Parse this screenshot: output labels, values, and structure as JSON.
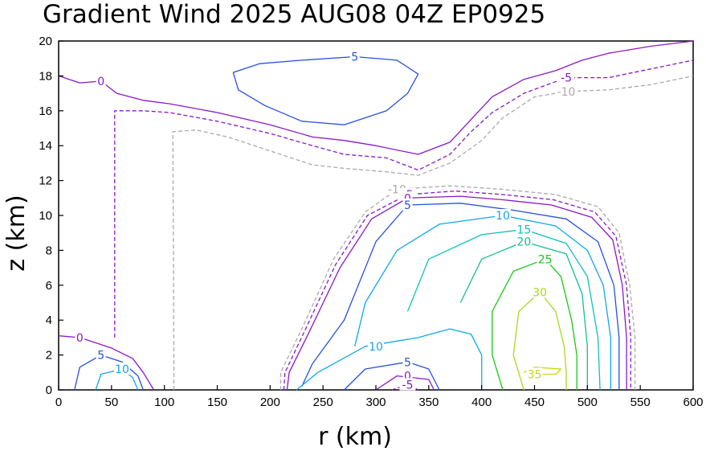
{
  "chart_data": {
    "type": "contour",
    "title": "Gradient Wind 2025 AUG08 04Z   EP0925",
    "xlabel": "r (km)",
    "ylabel": "z (km)",
    "xlim": [
      0,
      600
    ],
    "ylim": [
      0,
      20
    ],
    "x_ticks": [
      "0",
      "50",
      "100",
      "150",
      "200",
      "250",
      "300",
      "350",
      "400",
      "450",
      "500",
      "550",
      "600"
    ],
    "y_ticks": [
      "0",
      "2",
      "4",
      "6",
      "8",
      "10",
      "12",
      "14",
      "16",
      "18",
      "20"
    ],
    "contours": [
      {
        "level": 5,
        "color": "#2850e0",
        "dashed": false,
        "label_text": "5",
        "label_at": [
          280,
          19.1
        ],
        "points": [
          [
            165,
            18.2
          ],
          [
            190,
            18.7
          ],
          [
            230,
            18.9
          ],
          [
            280,
            19.1
          ],
          [
            320,
            18.9
          ],
          [
            340,
            18.1
          ],
          [
            330,
            17.0
          ],
          [
            310,
            16.0
          ],
          [
            270,
            15.2
          ],
          [
            230,
            15.4
          ],
          [
            195,
            16.3
          ],
          [
            170,
            17.2
          ],
          [
            165,
            18.2
          ]
        ]
      },
      {
        "level": 0,
        "color": "#8a18c8",
        "dashed": false,
        "label_text": "0",
        "label_at": [
          40,
          17.7
        ],
        "points": [
          [
            0,
            18.0
          ],
          [
            20,
            17.6
          ],
          [
            40,
            17.7
          ],
          [
            55,
            17.0
          ],
          [
            80,
            16.6
          ],
          [
            105,
            16.4
          ],
          [
            150,
            15.9
          ],
          [
            200,
            15.2
          ],
          [
            240,
            14.5
          ],
          [
            270,
            14.3
          ],
          [
            300,
            14.0
          ],
          [
            340,
            13.5
          ],
          [
            370,
            14.2
          ],
          [
            390,
            15.5
          ],
          [
            410,
            16.8
          ],
          [
            440,
            17.8
          ],
          [
            470,
            18.3
          ],
          [
            495,
            18.9
          ],
          [
            520,
            19.3
          ],
          [
            560,
            19.7
          ],
          [
            600,
            20.0
          ]
        ]
      },
      {
        "level": -5,
        "color": "#8a18c8",
        "dashed": true,
        "label_text": "-5",
        "label_at": [
          480,
          17.9
        ],
        "points": [
          [
            53,
            3.0
          ],
          [
            53,
            16.0
          ],
          [
            80,
            16.0
          ],
          [
            105,
            15.9
          ],
          [
            150,
            15.4
          ],
          [
            200,
            14.7
          ],
          [
            240,
            14.0
          ],
          [
            270,
            13.5
          ],
          [
            310,
            13.3
          ],
          [
            340,
            12.6
          ],
          [
            370,
            13.5
          ],
          [
            390,
            14.8
          ],
          [
            410,
            15.9
          ],
          [
            440,
            17.0
          ],
          [
            480,
            17.9
          ],
          [
            520,
            17.9
          ],
          [
            560,
            18.4
          ],
          [
            600,
            18.9
          ]
        ]
      },
      {
        "level": -10,
        "color": "#aaaaaa",
        "dashed": true,
        "label_text": "-10",
        "label_at": [
          480,
          17.1
        ],
        "points": [
          [
            109,
            0
          ],
          [
            109,
            2.0
          ],
          [
            108,
            14.8
          ],
          [
            130,
            14.9
          ],
          [
            160,
            14.5
          ],
          [
            200,
            13.7
          ],
          [
            240,
            12.9
          ],
          [
            270,
            12.7
          ],
          [
            310,
            12.5
          ],
          [
            340,
            12.3
          ],
          [
            370,
            13.0
          ],
          [
            400,
            14.3
          ],
          [
            420,
            15.6
          ],
          [
            450,
            16.8
          ],
          [
            480,
            17.1
          ],
          [
            520,
            17.2
          ],
          [
            560,
            17.5
          ],
          [
            600,
            18.0
          ]
        ]
      },
      {
        "level": 0,
        "color": "#8a18c8",
        "dashed": false,
        "label_text": "0",
        "label_at": [
          20,
          3.0
        ],
        "points": [
          [
            0,
            3.1
          ],
          [
            20,
            3.0
          ],
          [
            50,
            2.4
          ],
          [
            70,
            1.8
          ],
          [
            80,
            1.0
          ],
          [
            90,
            0
          ]
        ]
      },
      {
        "level": 5,
        "color": "#2850e0",
        "dashed": false,
        "label_text": "5",
        "label_at": [
          40,
          2.0
        ],
        "points": [
          [
            15,
            0
          ],
          [
            20,
            1.3
          ],
          [
            40,
            2.0
          ],
          [
            60,
            1.6
          ],
          [
            75,
            0.8
          ],
          [
            80,
            0
          ]
        ]
      },
      {
        "level": 10,
        "color": "#10a8e8",
        "dashed": false,
        "label_text": "10",
        "label_at": [
          60,
          1.2
        ],
        "points": [
          [
            35,
            0
          ],
          [
            40,
            0.9
          ],
          [
            60,
            1.2
          ],
          [
            70,
            0.7
          ],
          [
            75,
            0
          ]
        ]
      },
      {
        "level": -10,
        "color": "#aaaaaa",
        "dashed": true,
        "label_text": "-10",
        "label_at": [
          320,
          11.5
        ],
        "points": [
          [
            210,
            0
          ],
          [
            210,
            1.0
          ],
          [
            230,
            3.5
          ],
          [
            260,
            7.5
          ],
          [
            290,
            10.2
          ],
          [
            320,
            11.5
          ],
          [
            370,
            11.7
          ],
          [
            420,
            11.5
          ],
          [
            470,
            11.2
          ],
          [
            510,
            10.5
          ],
          [
            530,
            9.0
          ],
          [
            540,
            6.0
          ],
          [
            545,
            3.0
          ],
          [
            545,
            0
          ]
        ]
      },
      {
        "level": -5,
        "color": "#8a18c8",
        "dashed": true,
        "label_text": "-5",
        "label_at": [
          330,
          11.2
        ],
        "points": [
          [
            213,
            0
          ],
          [
            214,
            1.0
          ],
          [
            232,
            3.3
          ],
          [
            262,
            7.2
          ],
          [
            292,
            10.0
          ],
          [
            330,
            11.2
          ],
          [
            375,
            11.4
          ],
          [
            420,
            11.2
          ],
          [
            468,
            10.9
          ],
          [
            507,
            10.2
          ],
          [
            527,
            8.8
          ],
          [
            537,
            6.0
          ],
          [
            541,
            3.0
          ],
          [
            541,
            0
          ]
        ]
      },
      {
        "level": 0,
        "color": "#8a18c8",
        "dashed": false,
        "label_text": "0",
        "label_at": [
          330,
          11.0
        ],
        "points": [
          [
            216,
            0
          ],
          [
            218,
            1.0
          ],
          [
            236,
            3.2
          ],
          [
            266,
            7.0
          ],
          [
            296,
            9.8
          ],
          [
            330,
            11.0
          ],
          [
            380,
            11.1
          ],
          [
            420,
            10.9
          ],
          [
            466,
            10.6
          ],
          [
            504,
            9.9
          ],
          [
            524,
            8.6
          ],
          [
            533,
            6.0
          ],
          [
            537,
            3.0
          ],
          [
            537,
            0
          ]
        ]
      },
      {
        "level": 5,
        "color": "#2850e0",
        "dashed": false,
        "label_text": "5",
        "label_at": [
          330,
          10.6
        ],
        "points": [
          [
            230,
            0.2
          ],
          [
            240,
            1.5
          ],
          [
            270,
            4.0
          ],
          [
            300,
            8.5
          ],
          [
            330,
            10.6
          ],
          [
            380,
            10.7
          ],
          [
            430,
            10.3
          ],
          [
            480,
            9.8
          ],
          [
            510,
            8.5
          ],
          [
            525,
            6.0
          ],
          [
            530,
            3.0
          ],
          [
            530,
            0
          ]
        ]
      },
      {
        "level": 10,
        "color": "#10a8e8",
        "dashed": false,
        "label_text": "10",
        "label_at": [
          420,
          10.0
        ],
        "points": [
          [
            280,
            2.5
          ],
          [
            290,
            5.0
          ],
          [
            320,
            8.0
          ],
          [
            360,
            9.5
          ],
          [
            420,
            10.0
          ],
          [
            470,
            9.4
          ],
          [
            500,
            8.0
          ],
          [
            515,
            6.0
          ],
          [
            522,
            3.0
          ],
          [
            522,
            0
          ]
        ]
      },
      {
        "level": 15,
        "color": "#10c0b8",
        "dashed": false,
        "label_text": "15",
        "label_at": [
          440,
          9.2
        ],
        "points": [
          [
            330,
            4.5
          ],
          [
            350,
            7.5
          ],
          [
            400,
            8.9
          ],
          [
            440,
            9.2
          ],
          [
            480,
            8.4
          ],
          [
            500,
            6.5
          ],
          [
            510,
            3.0
          ],
          [
            512,
            0
          ]
        ]
      },
      {
        "level": 20,
        "color": "#10c090",
        "dashed": false,
        "label_text": "20",
        "label_at": [
          440,
          8.5
        ],
        "points": [
          [
            380,
            5.0
          ],
          [
            400,
            7.5
          ],
          [
            440,
            8.5
          ],
          [
            480,
            7.8
          ],
          [
            495,
            5.5
          ],
          [
            500,
            2.5
          ],
          [
            500,
            0
          ]
        ]
      },
      {
        "level": 25,
        "color": "#18c818",
        "dashed": false,
        "label_text": "25",
        "label_at": [
          460,
          7.5
        ],
        "points": [
          [
            420,
            0
          ],
          [
            410,
            2.0
          ],
          [
            410,
            4.5
          ],
          [
            430,
            6.8
          ],
          [
            460,
            7.5
          ],
          [
            475,
            6.5
          ],
          [
            485,
            4.0
          ],
          [
            490,
            2.0
          ],
          [
            490,
            0
          ]
        ]
      },
      {
        "level": 30,
        "color": "#a8d820",
        "dashed": false,
        "label_text": "30",
        "label_at": [
          455,
          5.6
        ],
        "points": [
          [
            440,
            0
          ],
          [
            430,
            2.0
          ],
          [
            435,
            4.5
          ],
          [
            455,
            5.6
          ],
          [
            470,
            4.5
          ],
          [
            478,
            2.5
          ],
          [
            480,
            1.0
          ],
          [
            480,
            0
          ]
        ]
      },
      {
        "level": 35,
        "color": "#c8d810",
        "dashed": false,
        "label_text": "35",
        "label_at": [
          450,
          0.9
        ],
        "points": [
          [
            440,
            1.0
          ],
          [
            450,
            1.3
          ],
          [
            475,
            1.2
          ],
          [
            470,
            0.9
          ],
          [
            450,
            0.9
          ]
        ]
      },
      {
        "level": 10,
        "color": "#10a8e8",
        "dashed": false,
        "label_text": "10",
        "label_at": [
          300,
          2.5
        ],
        "points": [
          [
            225,
            0
          ],
          [
            245,
            1.0
          ],
          [
            290,
            2.5
          ],
          [
            340,
            3.0
          ],
          [
            370,
            3.5
          ],
          [
            390,
            3.2
          ],
          [
            400,
            2.0
          ],
          [
            400,
            0
          ]
        ]
      },
      {
        "level": 5,
        "color": "#2850e0",
        "dashed": false,
        "label_text": "5",
        "label_at": [
          330,
          1.6
        ],
        "points": [
          [
            270,
            0
          ],
          [
            290,
            1.2
          ],
          [
            330,
            1.6
          ],
          [
            350,
            1.2
          ],
          [
            360,
            0
          ]
        ]
      },
      {
        "level": 0,
        "color": "#8a18c8",
        "dashed": false,
        "label_text": "0",
        "label_at": [
          330,
          0.8
        ],
        "points": [
          [
            300,
            0
          ],
          [
            320,
            0.8
          ],
          [
            350,
            0.6
          ],
          [
            355,
            0
          ]
        ]
      },
      {
        "level": -5,
        "color": "#8a18c8",
        "dashed": true,
        "label_text": "-5",
        "label_at": [
          330,
          0.3
        ],
        "points": [
          [
            315,
            0
          ],
          [
            330,
            0.3
          ],
          [
            340,
            0
          ]
        ]
      }
    ]
  }
}
